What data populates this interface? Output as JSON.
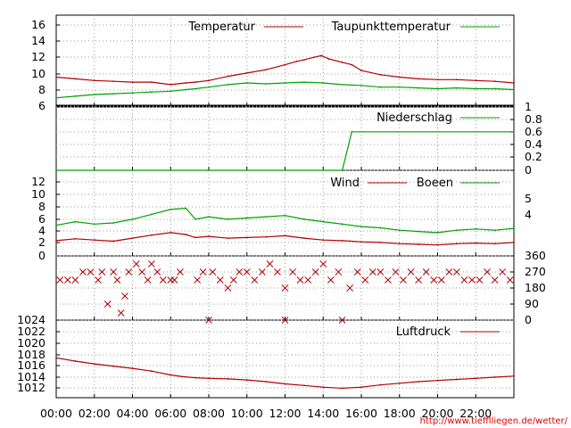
{
  "colors": {
    "red": "#b00000",
    "green": "#00a000",
    "grid": "#9a9a9a",
    "credit": "#e00000",
    "wind_dir": "#b00000"
  },
  "credit": "http://www.tiefflliegen.de/wetter/",
  "x_axis": {
    "range_hours": [
      0,
      24
    ],
    "ticks": [
      "00:00",
      "02:00",
      "04:00",
      "06:00",
      "08:00",
      "10:00",
      "12:00",
      "14:00",
      "16:00",
      "18:00",
      "20:00",
      "22:00"
    ]
  },
  "chart_data": [
    {
      "type": "line",
      "panel": "temperature",
      "ylim": [
        6,
        17
      ],
      "yticks": [
        "6",
        "8",
        "10",
        "12",
        "14",
        "16"
      ],
      "series": [
        {
          "name": "Temperatur",
          "color": "#b00000",
          "points": [
            [
              0,
              9.5
            ],
            [
              1,
              9.3
            ],
            [
              2,
              9.1
            ],
            [
              3,
              9.0
            ],
            [
              4,
              8.9
            ],
            [
              5,
              8.9
            ],
            [
              6,
              8.6
            ],
            [
              6.8,
              8.8
            ],
            [
              7.3,
              8.9
            ],
            [
              8,
              9.1
            ],
            [
              9,
              9.6
            ],
            [
              10,
              10.0
            ],
            [
              11,
              10.4
            ],
            [
              12,
              11.0
            ],
            [
              12.6,
              11.4
            ],
            [
              13,
              11.6
            ],
            [
              13.5,
              11.9
            ],
            [
              13.9,
              12.1
            ],
            [
              14.3,
              11.7
            ],
            [
              15,
              11.3
            ],
            [
              15.5,
              11.0
            ],
            [
              16,
              10.3
            ],
            [
              17,
              9.8
            ],
            [
              18,
              9.5
            ],
            [
              19,
              9.3
            ],
            [
              20,
              9.2
            ],
            [
              21,
              9.2
            ],
            [
              22,
              9.1
            ],
            [
              23,
              9.0
            ],
            [
              24,
              8.8
            ]
          ]
        },
        {
          "name": "Taupunkttemperatur",
          "color": "#00a000",
          "points": [
            [
              0,
              7.0
            ],
            [
              1,
              7.2
            ],
            [
              2,
              7.4
            ],
            [
              3,
              7.5
            ],
            [
              4,
              7.6
            ],
            [
              5,
              7.7
            ],
            [
              6,
              7.8
            ],
            [
              6.8,
              8.0
            ],
            [
              7.3,
              8.1
            ],
            [
              8,
              8.3
            ],
            [
              9,
              8.6
            ],
            [
              10,
              8.8
            ],
            [
              11,
              8.7
            ],
            [
              12,
              8.8
            ],
            [
              13,
              8.9
            ],
            [
              14,
              8.8
            ],
            [
              15,
              8.6
            ],
            [
              16,
              8.5
            ],
            [
              17,
              8.3
            ],
            [
              18,
              8.3
            ],
            [
              19,
              8.2
            ],
            [
              20,
              8.1
            ],
            [
              21,
              8.2
            ],
            [
              22,
              8.1
            ],
            [
              23,
              8.1
            ],
            [
              24,
              8.0
            ]
          ]
        }
      ]
    },
    {
      "type": "line",
      "panel": "precipitation",
      "ylim": [
        0,
        1
      ],
      "yticks": [
        "0",
        "0.2",
        "0.4",
        "0.6",
        "0.8",
        "1"
      ],
      "series": [
        {
          "name": "Niederschlag",
          "color": "#00a000",
          "points": [
            [
              0,
              0
            ],
            [
              15.0,
              0
            ],
            [
              15.5,
              0.6
            ],
            [
              24,
              0.6
            ]
          ]
        }
      ]
    },
    {
      "type": "line",
      "panel": "wind",
      "ylim": [
        0,
        14
      ],
      "yticks": [
        "0",
        "2",
        "4",
        "6",
        "8",
        "10",
        "12"
      ],
      "right_ticks": [
        "4",
        "5"
      ],
      "series": [
        {
          "name": "Wind",
          "color": "#b00000",
          "points": [
            [
              0,
              2.5
            ],
            [
              1,
              2.8
            ],
            [
              2,
              2.6
            ],
            [
              3,
              2.4
            ],
            [
              4,
              2.9
            ],
            [
              5,
              3.4
            ],
            [
              6,
              3.8
            ],
            [
              6.8,
              3.5
            ],
            [
              7.3,
              3.0
            ],
            [
              8,
              3.2
            ],
            [
              9,
              2.9
            ],
            [
              10,
              3.0
            ],
            [
              11,
              3.1
            ],
            [
              12,
              3.3
            ],
            [
              13,
              2.9
            ],
            [
              14,
              2.6
            ],
            [
              15,
              2.5
            ],
            [
              16,
              2.3
            ],
            [
              17,
              2.2
            ],
            [
              18,
              2.0
            ],
            [
              19,
              1.9
            ],
            [
              20,
              1.8
            ],
            [
              21,
              2.0
            ],
            [
              22,
              2.1
            ],
            [
              23,
              2.0
            ],
            [
              24,
              2.2
            ]
          ]
        },
        {
          "name": "Boeen",
          "color": "#00a000",
          "points": [
            [
              0,
              5.0
            ],
            [
              1,
              5.6
            ],
            [
              2,
              5.2
            ],
            [
              3,
              5.4
            ],
            [
              4,
              6.0
            ],
            [
              5,
              6.8
            ],
            [
              6,
              7.6
            ],
            [
              6.8,
              7.8
            ],
            [
              7.3,
              6.0
            ],
            [
              8,
              6.4
            ],
            [
              9,
              6.0
            ],
            [
              10,
              6.2
            ],
            [
              11,
              6.4
            ],
            [
              12,
              6.6
            ],
            [
              13,
              6.0
            ],
            [
              14,
              5.6
            ],
            [
              15,
              5.2
            ],
            [
              16,
              4.8
            ],
            [
              17,
              4.6
            ],
            [
              18,
              4.2
            ],
            [
              19,
              4.0
            ],
            [
              20,
              3.8
            ],
            [
              21,
              4.2
            ],
            [
              22,
              4.4
            ],
            [
              23,
              4.2
            ],
            [
              24,
              4.5
            ]
          ]
        }
      ]
    },
    {
      "type": "scatter",
      "panel": "wind_direction",
      "ylim": [
        0,
        360
      ],
      "yticks": [
        "0",
        "90",
        "180",
        "270",
        "360"
      ],
      "series": [
        {
          "name": "",
          "color": "#b00000",
          "points": [
            [
              0.2,
              225
            ],
            [
              0.6,
              225
            ],
            [
              1.0,
              225
            ],
            [
              1.4,
              270
            ],
            [
              1.8,
              270
            ],
            [
              2.2,
              225
            ],
            [
              2.4,
              270
            ],
            [
              2.7,
              90
            ],
            [
              3.0,
              270
            ],
            [
              3.2,
              225
            ],
            [
              3.4,
              40
            ],
            [
              3.6,
              135
            ],
            [
              3.8,
              270
            ],
            [
              4.2,
              315
            ],
            [
              4.5,
              270
            ],
            [
              4.8,
              225
            ],
            [
              5.0,
              315
            ],
            [
              5.3,
              270
            ],
            [
              5.6,
              225
            ],
            [
              6.0,
              225
            ],
            [
              6.2,
              225
            ],
            [
              6.5,
              270
            ],
            [
              7.4,
              225
            ],
            [
              7.7,
              270
            ],
            [
              8.0,
              0
            ],
            [
              8.2,
              270
            ],
            [
              8.6,
              225
            ],
            [
              9.0,
              180
            ],
            [
              9.3,
              225
            ],
            [
              9.6,
              270
            ],
            [
              10.0,
              270
            ],
            [
              10.4,
              225
            ],
            [
              10.8,
              270
            ],
            [
              11.2,
              315
            ],
            [
              11.6,
              270
            ],
            [
              12.0,
              0
            ],
            [
              12.0,
              180
            ],
            [
              12.4,
              270
            ],
            [
              12.8,
              225
            ],
            [
              13.2,
              225
            ],
            [
              13.6,
              270
            ],
            [
              14.0,
              315
            ],
            [
              14.4,
              225
            ],
            [
              14.8,
              270
            ],
            [
              15.0,
              0
            ],
            [
              15.4,
              180
            ],
            [
              15.8,
              270
            ],
            [
              16.2,
              225
            ],
            [
              16.6,
              270
            ],
            [
              17.0,
              270
            ],
            [
              17.4,
              225
            ],
            [
              17.8,
              270
            ],
            [
              18.2,
              225
            ],
            [
              18.6,
              270
            ],
            [
              19.0,
              225
            ],
            [
              19.4,
              270
            ],
            [
              19.8,
              225
            ],
            [
              20.2,
              225
            ],
            [
              20.6,
              270
            ],
            [
              21.0,
              270
            ],
            [
              21.4,
              225
            ],
            [
              21.8,
              225
            ],
            [
              22.2,
              225
            ],
            [
              22.6,
              270
            ],
            [
              23.0,
              225
            ],
            [
              23.4,
              270
            ],
            [
              23.8,
              225
            ]
          ]
        }
      ]
    },
    {
      "type": "line",
      "panel": "pressure",
      "ylim": [
        1010,
        1024
      ],
      "yticks": [
        "1012",
        "1014",
        "1016",
        "1018",
        "1020",
        "1022",
        "1024"
      ],
      "series": [
        {
          "name": "Luftdruck",
          "color": "#b00000",
          "points": [
            [
              0,
              1017.2
            ],
            [
              1,
              1016.6
            ],
            [
              2,
              1016.1
            ],
            [
              3,
              1015.7
            ],
            [
              4,
              1015.3
            ],
            [
              5,
              1014.8
            ],
            [
              6,
              1014.1
            ],
            [
              6.6,
              1013.8
            ],
            [
              7.3,
              1013.6
            ],
            [
              8,
              1013.5
            ],
            [
              9,
              1013.4
            ],
            [
              10,
              1013.2
            ],
            [
              11,
              1012.9
            ],
            [
              12,
              1012.5
            ],
            [
              13,
              1012.2
            ],
            [
              14,
              1011.9
            ],
            [
              15,
              1011.7
            ],
            [
              16,
              1011.9
            ],
            [
              17,
              1012.3
            ],
            [
              18,
              1012.6
            ],
            [
              19,
              1012.9
            ],
            [
              20,
              1013.1
            ],
            [
              21,
              1013.3
            ],
            [
              22,
              1013.5
            ],
            [
              23,
              1013.7
            ],
            [
              24,
              1013.9
            ]
          ]
        }
      ]
    }
  ]
}
